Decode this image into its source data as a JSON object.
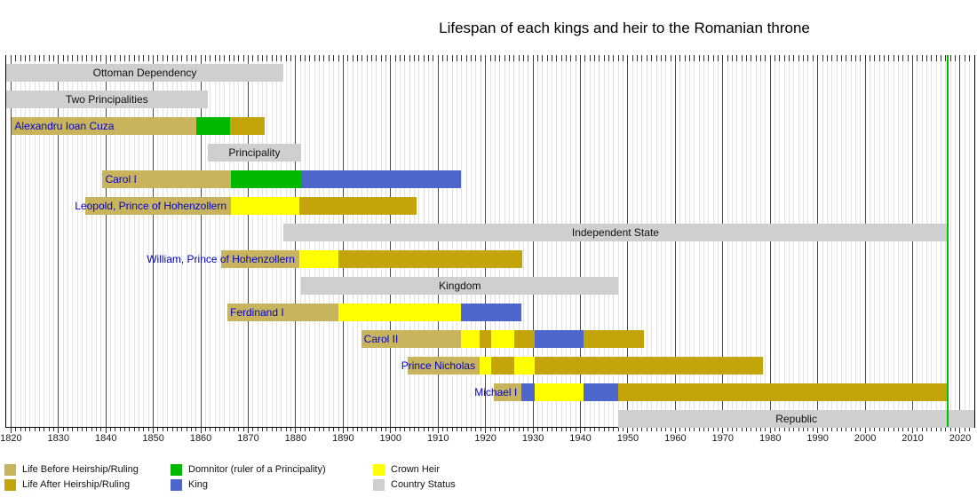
{
  "title": "Lifespan of each kings and heir to the Romanian throne",
  "chart_data": {
    "type": "bar",
    "variant": "gantt-timeline",
    "title": "Lifespan of each kings and heir to the Romanian throne",
    "axis": {
      "min": 1819,
      "max": 2023,
      "unit": "year",
      "ticks": [
        1820,
        1830,
        1840,
        1850,
        1860,
        1870,
        1880,
        1890,
        1900,
        1910,
        1920,
        1930,
        1940,
        1950,
        1960,
        1970,
        1980,
        1990,
        2000,
        2010,
        2020
      ],
      "today": 2017.35,
      "grid": "yearly-light-decade-dark",
      "legend_position": "bottom"
    },
    "colors": {
      "before": "#C9B45E",
      "after": "#C3A40B",
      "domnitor": "#00B800",
      "king": "#4C66CC",
      "heir": "#FFFF00",
      "status": "#CFCFCF",
      "today_line": "#00BE00",
      "person_label": "#0000CC",
      "status_label": "#111111",
      "decade_line": "#4a4a4a",
      "year_line": "#E2E2E2"
    },
    "legend": [
      {
        "label": "Life Before Heirship/Ruling",
        "role": "before"
      },
      {
        "label": "Life After Heirship/Ruling",
        "role": "after"
      },
      {
        "label": "Domnitor (ruler of a Principality)",
        "role": "domnitor"
      },
      {
        "label": "King",
        "role": "king"
      },
      {
        "label": "Crown Heir",
        "role": "heir"
      },
      {
        "label": "Country Status",
        "role": "status"
      }
    ],
    "rows": [
      {
        "kind": "status",
        "label": "Ottoman Dependency",
        "segments": [
          {
            "role": "status",
            "from": 1819,
            "to": 1877.4
          }
        ]
      },
      {
        "kind": "status",
        "label": "Two Principalities",
        "segments": [
          {
            "role": "status",
            "from": 1819,
            "to": 1861.4
          }
        ]
      },
      {
        "kind": "person",
        "label": "Alexandru Ioan Cuza",
        "segments": [
          {
            "role": "before",
            "from": 1820.2,
            "to": 1859.0
          },
          {
            "role": "domnitor",
            "from": 1859.0,
            "to": 1866.1
          },
          {
            "role": "after",
            "from": 1866.1,
            "to": 1873.4
          }
        ]
      },
      {
        "kind": "status",
        "label": "Principality",
        "segments": [
          {
            "role": "status",
            "from": 1861.4,
            "to": 1881.2
          }
        ]
      },
      {
        "kind": "person",
        "label": "Carol I",
        "segments": [
          {
            "role": "before",
            "from": 1839.3,
            "to": 1866.3
          },
          {
            "role": "domnitor",
            "from": 1866.3,
            "to": 1881.2
          },
          {
            "role": "king",
            "from": 1881.2,
            "to": 1914.8
          }
        ]
      },
      {
        "kind": "person",
        "label": "Leopold, Prince of Hohenzollern",
        "segments": [
          {
            "role": "before",
            "from": 1835.7,
            "to": 1866.4
          },
          {
            "role": "heir",
            "from": 1866.4,
            "to": 1880.8
          },
          {
            "role": "after",
            "from": 1880.8,
            "to": 1905.4
          }
        ]
      },
      {
        "kind": "status",
        "label": "Independent State",
        "segments": [
          {
            "role": "status",
            "from": 1877.4,
            "to": 2017.35
          }
        ]
      },
      {
        "kind": "person",
        "label": "William, Prince of Hohenzollern",
        "segments": [
          {
            "role": "before",
            "from": 1864.2,
            "to": 1880.8
          },
          {
            "role": "heir",
            "from": 1880.8,
            "to": 1889.0
          },
          {
            "role": "after",
            "from": 1889.0,
            "to": 1927.8
          }
        ]
      },
      {
        "kind": "status",
        "label": "Kingdom",
        "segments": [
          {
            "role": "status",
            "from": 1881.2,
            "to": 1948.0
          }
        ]
      },
      {
        "kind": "person",
        "label": "Ferdinand I",
        "segments": [
          {
            "role": "before",
            "from": 1865.6,
            "to": 1889.0
          },
          {
            "role": "heir",
            "from": 1889.0,
            "to": 1914.8
          },
          {
            "role": "king",
            "from": 1914.8,
            "to": 1927.6
          }
        ]
      },
      {
        "kind": "person",
        "label": "Carol II",
        "segments": [
          {
            "role": "before",
            "from": 1893.8,
            "to": 1914.8
          },
          {
            "role": "heir",
            "from": 1914.8,
            "to": 1918.7
          },
          {
            "role": "after",
            "from": 1918.7,
            "to": 1921.1
          },
          {
            "role": "heir",
            "from": 1921.1,
            "to": 1926.0
          },
          {
            "role": "after",
            "from": 1926.0,
            "to": 1930.4
          },
          {
            "role": "king",
            "from": 1930.4,
            "to": 1940.7
          },
          {
            "role": "after",
            "from": 1940.7,
            "to": 1953.3
          }
        ]
      },
      {
        "kind": "person",
        "label": "Prince Nicholas",
        "segments": [
          {
            "role": "before",
            "from": 1903.6,
            "to": 1918.7
          },
          {
            "role": "heir",
            "from": 1918.7,
            "to": 1921.1
          },
          {
            "role": "after",
            "from": 1921.1,
            "to": 1926.0
          },
          {
            "role": "heir",
            "from": 1926.0,
            "to": 1930.4
          },
          {
            "role": "after",
            "from": 1930.4,
            "to": 1978.4
          }
        ]
      },
      {
        "kind": "person",
        "label": "Michael I",
        "segments": [
          {
            "role": "before",
            "from": 1921.8,
            "to": 1927.6
          },
          {
            "role": "king",
            "from": 1927.6,
            "to": 1930.4
          },
          {
            "role": "heir",
            "from": 1930.4,
            "to": 1940.7
          },
          {
            "role": "king",
            "from": 1940.7,
            "to": 1948.0
          },
          {
            "role": "after",
            "from": 1948.0,
            "to": 2017.35
          }
        ]
      },
      {
        "kind": "status",
        "label": "Republic",
        "segments": [
          {
            "role": "status",
            "from": 1948.0,
            "to": 2023
          }
        ]
      }
    ]
  }
}
